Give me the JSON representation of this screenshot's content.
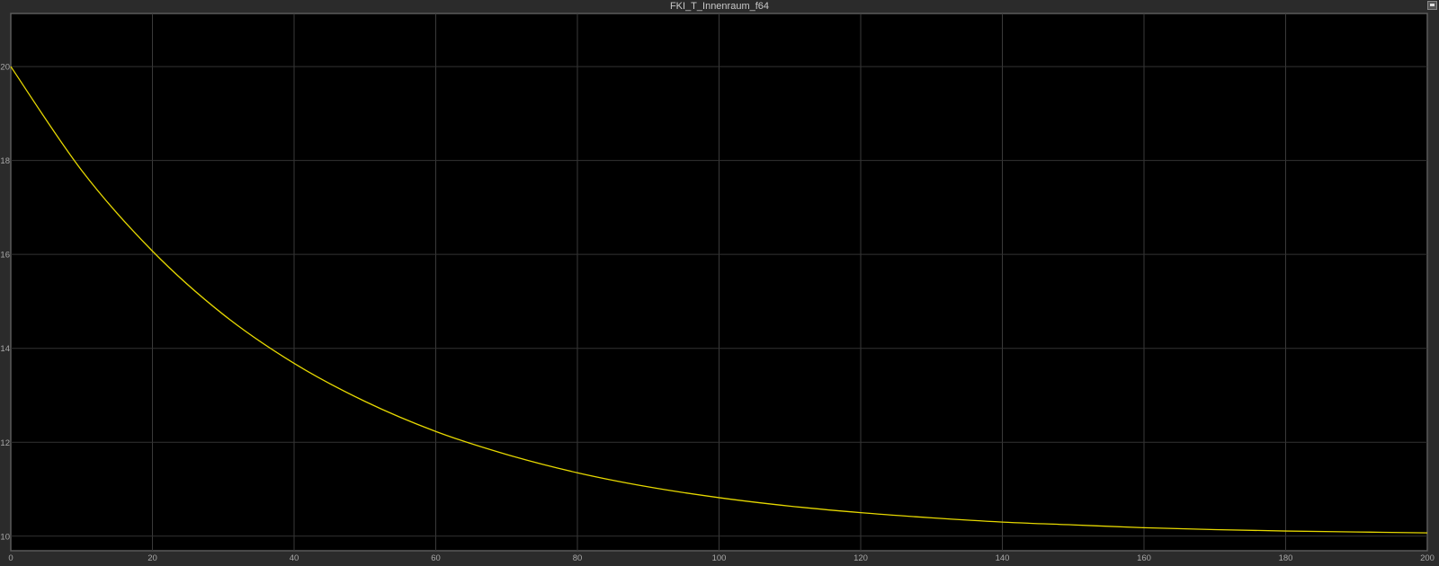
{
  "window": {
    "title": "FKI_T_Innenraum_f64",
    "restore_icon": "restore-window-icon"
  },
  "chart_data": {
    "type": "line",
    "title": "FKI_T_Innenraum_f64",
    "xlabel": "",
    "ylabel": "",
    "xlim": [
      0,
      200
    ],
    "ylim": [
      9.69,
      21.13
    ],
    "xticks": [
      0,
      20,
      40,
      60,
      80,
      100,
      120,
      140,
      160,
      180,
      200
    ],
    "yticks": [
      10,
      12,
      14,
      16,
      18,
      20
    ],
    "grid": true,
    "background": "#000000",
    "series": [
      {
        "color": "#e6d800",
        "x": [
          0,
          10,
          20,
          30,
          40,
          50,
          60,
          70,
          80,
          90,
          100,
          110,
          120,
          130,
          140,
          150,
          160,
          170,
          180,
          190,
          200
        ],
        "y": [
          20,
          17.79,
          16.07,
          14.72,
          13.68,
          12.87,
          12.23,
          11.74,
          11.35,
          11.05,
          10.82,
          10.64,
          10.5,
          10.39,
          10.3,
          10.24,
          10.18,
          10.14,
          10.11,
          10.09,
          10.07
        ]
      }
    ]
  }
}
